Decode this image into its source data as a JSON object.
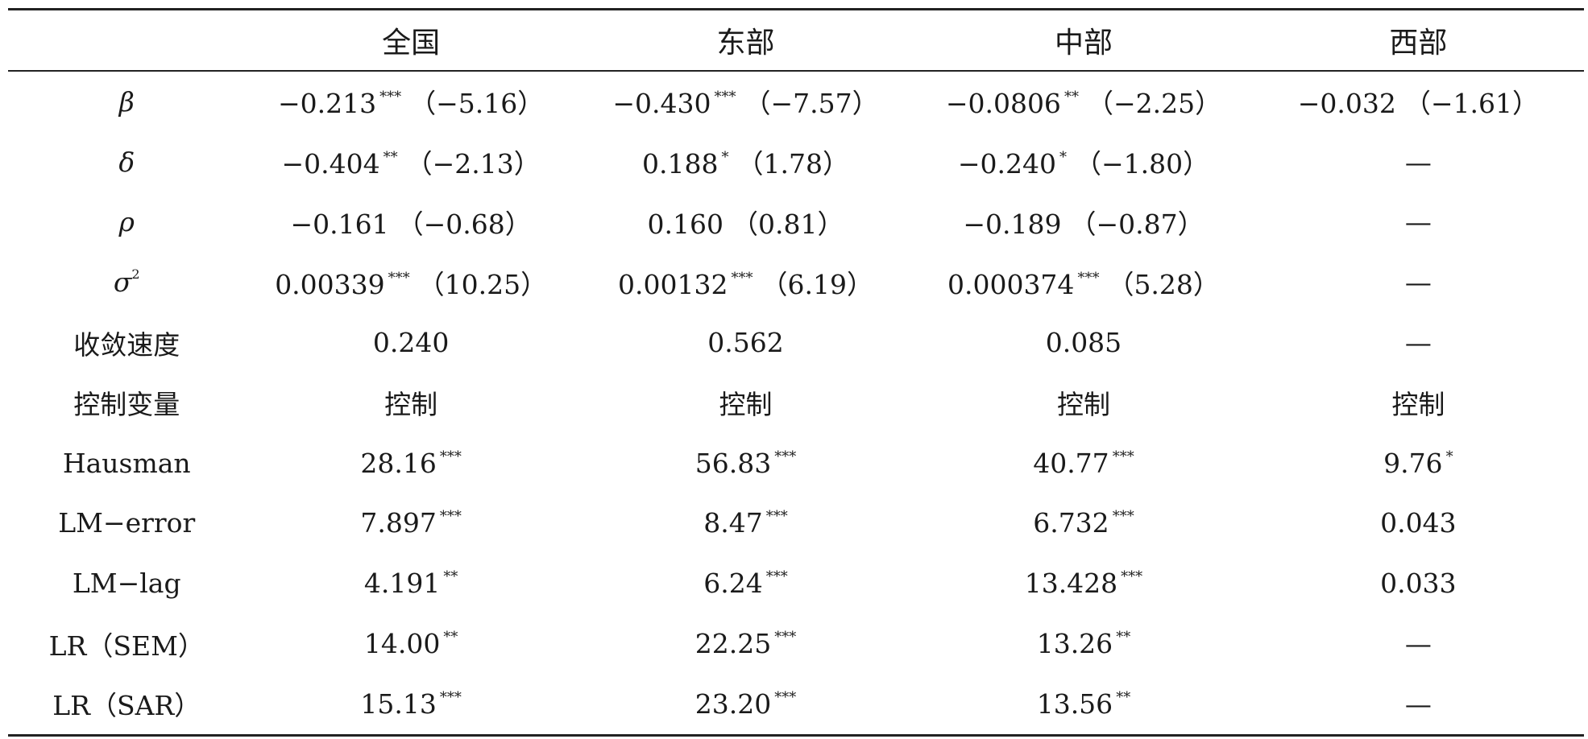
{
  "table": {
    "headers": [
      "",
      "全国",
      "东部",
      "中部",
      "西部"
    ],
    "rows": [
      {
        "label": "β",
        "cells": [
          {
            "v": "−0.213",
            "s": "***",
            "p": "（−5.16）"
          },
          {
            "v": "−0.430",
            "s": "***",
            "p": "（−7.57）"
          },
          {
            "v": "−0.0806",
            "s": "**",
            "p": "（−2.25）"
          },
          {
            "v": "−0.032",
            "s": "",
            "p": "（−1.61）"
          }
        ]
      },
      {
        "label": "δ",
        "cells": [
          {
            "v": "−0.404",
            "s": "**",
            "p": "（−2.13）"
          },
          {
            "v": "0.188",
            "s": "*",
            "p": "（1.78）"
          },
          {
            "v": "−0.240",
            "s": "*",
            "p": "（−1.80）"
          },
          {
            "v": "—",
            "s": "",
            "p": ""
          }
        ]
      },
      {
        "label": "ρ",
        "cells": [
          {
            "v": "−0.161",
            "s": "",
            "p": "（−0.68）"
          },
          {
            "v": "0.160",
            "s": "",
            "p": "（0.81）"
          },
          {
            "v": "−0.189",
            "s": "",
            "p": "（−0.87）"
          },
          {
            "v": "—",
            "s": "",
            "p": ""
          }
        ]
      },
      {
        "label": "σ",
        "label_sup": "2",
        "cells": [
          {
            "v": "0.00339",
            "s": "***",
            "p": "（10.25）"
          },
          {
            "v": "0.00132",
            "s": "***",
            "p": "（6.19）"
          },
          {
            "v": "0.000374",
            "s": "***",
            "p": "（5.28）"
          },
          {
            "v": "—",
            "s": "",
            "p": ""
          }
        ]
      },
      {
        "label": "收敛速度",
        "cells": [
          {
            "v": "0.240",
            "s": "",
            "p": ""
          },
          {
            "v": "0.562",
            "s": "",
            "p": ""
          },
          {
            "v": "0.085",
            "s": "",
            "p": ""
          },
          {
            "v": "—",
            "s": "",
            "p": ""
          }
        ]
      },
      {
        "label": "控制变量",
        "cells": [
          {
            "v": "控制",
            "s": "",
            "p": ""
          },
          {
            "v": "控制",
            "s": "",
            "p": ""
          },
          {
            "v": "控制",
            "s": "",
            "p": ""
          },
          {
            "v": "控制",
            "s": "",
            "p": ""
          }
        ]
      },
      {
        "label": "Hausman",
        "cells": [
          {
            "v": "28.16",
            "s": "***",
            "p": ""
          },
          {
            "v": "56.83",
            "s": "***",
            "p": ""
          },
          {
            "v": "40.77",
            "s": "***",
            "p": ""
          },
          {
            "v": "9.76",
            "s": "*",
            "p": ""
          }
        ]
      },
      {
        "label": "LM−error",
        "cells": [
          {
            "v": "7.897",
            "s": "***",
            "p": ""
          },
          {
            "v": "8.47",
            "s": "***",
            "p": ""
          },
          {
            "v": "6.732",
            "s": "***",
            "p": ""
          },
          {
            "v": "0.043",
            "s": "",
            "p": ""
          }
        ]
      },
      {
        "label": "LM−lag",
        "cells": [
          {
            "v": "4.191",
            "s": "**",
            "p": ""
          },
          {
            "v": "6.24",
            "s": "***",
            "p": ""
          },
          {
            "v": "13.428",
            "s": "***",
            "p": ""
          },
          {
            "v": "0.033",
            "s": "",
            "p": ""
          }
        ]
      },
      {
        "label": "LR（SEM）",
        "cells": [
          {
            "v": "14.00",
            "s": "**",
            "p": ""
          },
          {
            "v": "22.25",
            "s": "***",
            "p": ""
          },
          {
            "v": "13.26",
            "s": "**",
            "p": ""
          },
          {
            "v": "—",
            "s": "",
            "p": ""
          }
        ]
      },
      {
        "label": "LR（SAR）",
        "cells": [
          {
            "v": "15.13",
            "s": "***",
            "p": ""
          },
          {
            "v": "23.20",
            "s": "***",
            "p": ""
          },
          {
            "v": "13.56",
            "s": "**",
            "p": ""
          },
          {
            "v": "—",
            "s": "",
            "p": ""
          }
        ]
      }
    ]
  }
}
